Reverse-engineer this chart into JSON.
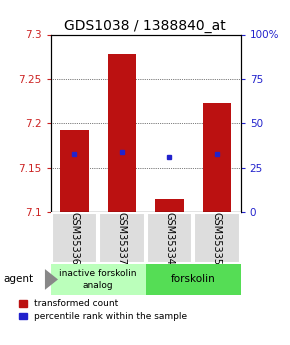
{
  "title": "GDS1038 / 1388840_at",
  "samples": [
    "GSM35336",
    "GSM35337",
    "GSM35334",
    "GSM35335"
  ],
  "bar_bottoms": [
    7.1,
    7.1,
    7.1,
    7.1
  ],
  "bar_tops": [
    7.193,
    7.278,
    7.115,
    7.223
  ],
  "blue_y": [
    7.165,
    7.168,
    7.162,
    7.165
  ],
  "ylim": [
    7.1,
    7.3
  ],
  "yticks_left": [
    7.1,
    7.15,
    7.2,
    7.25,
    7.3
  ],
  "yticks_right": [
    0,
    25,
    50,
    75,
    100
  ],
  "bar_color": "#bb1111",
  "blue_color": "#2222cc",
  "legend_red": "transformed count",
  "legend_blue": "percentile rank within the sample",
  "bg_color": "#ffffff",
  "tick_label_color_left": "#cc2222",
  "tick_label_color_right": "#2222cc",
  "title_fontsize": 10,
  "axis_fontsize": 7.5,
  "sample_label_fontsize": 7
}
